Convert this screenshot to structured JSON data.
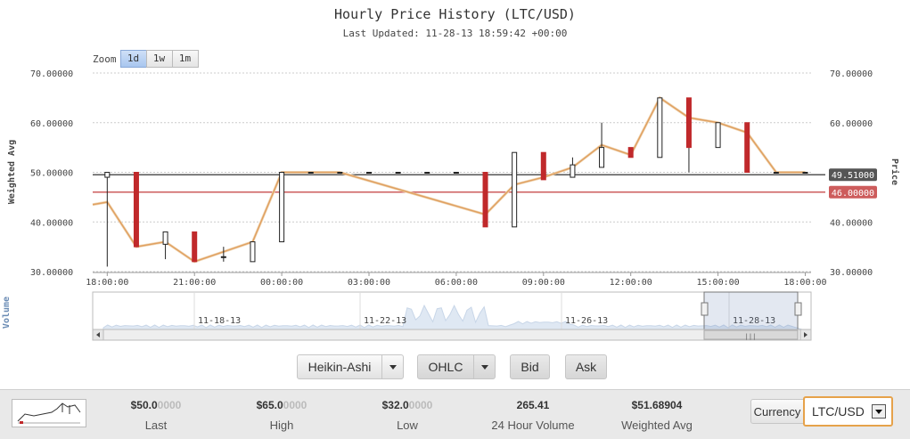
{
  "header": {
    "title": "Hourly Price History (LTC/USD)",
    "subtitle": "Last Updated: 11-28-13 18:59:42 +00:00"
  },
  "zoom": {
    "label": "Zoom",
    "options": [
      "1d",
      "1w",
      "1m"
    ],
    "active": "1d"
  },
  "chart_data": {
    "type": "candlestick",
    "title": "Hourly Price History (LTC/USD)",
    "ylabel_left": "Weighted Avg",
    "ylabel_right": "Price",
    "navigator_label": "Volume",
    "ylim": [
      30,
      70
    ],
    "yticks": [
      30,
      40,
      50,
      60,
      70
    ],
    "ytick_labels": [
      "30.00000",
      "40.00000",
      "50.00000",
      "60.00000",
      "70.00000"
    ],
    "xlim": [
      -0.5,
      24.2
    ],
    "xticks": [
      0,
      3,
      6,
      9,
      12,
      15,
      18,
      21,
      24
    ],
    "xtick_labels": [
      "18:00:00",
      "21:00:00",
      "00:00:00",
      "03:00:00",
      "06:00:00",
      "09:00:00",
      "12:00:00",
      "15:00:00",
      "18:00:00"
    ],
    "candles": [
      {
        "t": 0,
        "o": 49.0,
        "h": 50.0,
        "l": 31.0,
        "c": 50.0
      },
      {
        "t": 1,
        "o": 50.0,
        "h": 50.0,
        "l": 35.0,
        "c": 35.0
      },
      {
        "t": 2,
        "o": 35.5,
        "h": 38.0,
        "l": 32.5,
        "c": 38.0
      },
      {
        "t": 3,
        "o": 38.0,
        "h": 38.0,
        "l": 32.0,
        "c": 32.0
      },
      {
        "t": 4,
        "o": 33.0,
        "h": 35.0,
        "l": 32.0,
        "c": 33.0
      },
      {
        "t": 5,
        "o": 32.0,
        "h": 36.0,
        "l": 32.0,
        "c": 36.0
      },
      {
        "t": 6,
        "o": 36.0,
        "h": 50.0,
        "l": 36.0,
        "c": 50.0
      },
      {
        "t": 7,
        "o": 50.0,
        "h": 50.0,
        "l": 50.0,
        "c": 50.0
      },
      {
        "t": 8,
        "o": 50.0,
        "h": 50.0,
        "l": 50.0,
        "c": 50.0
      },
      {
        "t": 9,
        "o": 50.0,
        "h": 50.0,
        "l": 50.0,
        "c": 50.0
      },
      {
        "t": 10,
        "o": 50.0,
        "h": 50.0,
        "l": 50.0,
        "c": 50.0
      },
      {
        "t": 11,
        "o": 50.0,
        "h": 50.0,
        "l": 50.0,
        "c": 50.0
      },
      {
        "t": 12,
        "o": 50.0,
        "h": 50.0,
        "l": 50.0,
        "c": 50.0
      },
      {
        "t": 13,
        "o": 50.0,
        "h": 50.0,
        "l": 39.0,
        "c": 39.0
      },
      {
        "t": 14,
        "o": 39.0,
        "h": 54.0,
        "l": 39.0,
        "c": 54.0
      },
      {
        "t": 15,
        "o": 54.0,
        "h": 54.0,
        "l": 48.5,
        "c": 48.5
      },
      {
        "t": 16,
        "o": 49.0,
        "h": 53.0,
        "l": 49.0,
        "c": 51.5
      },
      {
        "t": 17,
        "o": 51.0,
        "h": 60.0,
        "l": 51.0,
        "c": 55.0
      },
      {
        "t": 18,
        "o": 55.0,
        "h": 55.0,
        "l": 53.0,
        "c": 53.0
      },
      {
        "t": 19,
        "o": 53.0,
        "h": 65.0,
        "l": 53.0,
        "c": 65.0
      },
      {
        "t": 20,
        "o": 65.0,
        "h": 65.0,
        "l": 50.0,
        "c": 55.0
      },
      {
        "t": 21,
        "o": 55.0,
        "h": 60.0,
        "l": 55.0,
        "c": 60.0
      },
      {
        "t": 22,
        "o": 60.0,
        "h": 60.0,
        "l": 50.0,
        "c": 50.0
      },
      {
        "t": 23,
        "o": 50.0,
        "h": 50.0,
        "l": 50.0,
        "c": 50.0
      },
      {
        "t": 24,
        "o": 50.0,
        "h": 50.0,
        "l": 50.0,
        "c": 50.0
      }
    ],
    "weighted_avg": {
      "x": [
        -0.5,
        0,
        1,
        2,
        3,
        5,
        6,
        8,
        13,
        14,
        15,
        16,
        17,
        18,
        19,
        20,
        21,
        22,
        23,
        24
      ],
      "y": [
        43.5,
        44,
        35,
        36,
        32,
        36,
        50,
        50,
        41.5,
        47.5,
        49,
        51,
        55.5,
        53.5,
        65,
        61,
        60,
        58,
        50,
        50
      ]
    },
    "price_lines": [
      {
        "value": 49.51,
        "label": "49.51000",
        "color": "#555555"
      },
      {
        "value": 46.0,
        "label": "46.00000",
        "color": "#cd5c5c"
      }
    ],
    "navigator_dates": [
      "11-18-13",
      "11-22-13",
      "11-26-13",
      "11-28-13"
    ]
  },
  "buttons": {
    "chart_type": "Heikin-Ashi",
    "series": "OHLC",
    "bid": "Bid",
    "ask": "Ask"
  },
  "stats": [
    {
      "value": "$50.0",
      "dim": "0000",
      "label": "Last"
    },
    {
      "value": "$65.0",
      "dim": "0000",
      "label": "High"
    },
    {
      "value": "$32.0",
      "dim": "0000",
      "label": "Low"
    },
    {
      "value": "265.41",
      "dim": "",
      "label": "24 Hour Volume"
    },
    {
      "value": "$51.68904",
      "dim": "",
      "label": "Weighted Avg"
    }
  ],
  "currency": {
    "label": "Currency",
    "selected": "LTC/USD"
  },
  "colors": {
    "up": "#ffffff",
    "down": "#c0292b",
    "line": "#e0a060",
    "grid": "#cccccc"
  }
}
